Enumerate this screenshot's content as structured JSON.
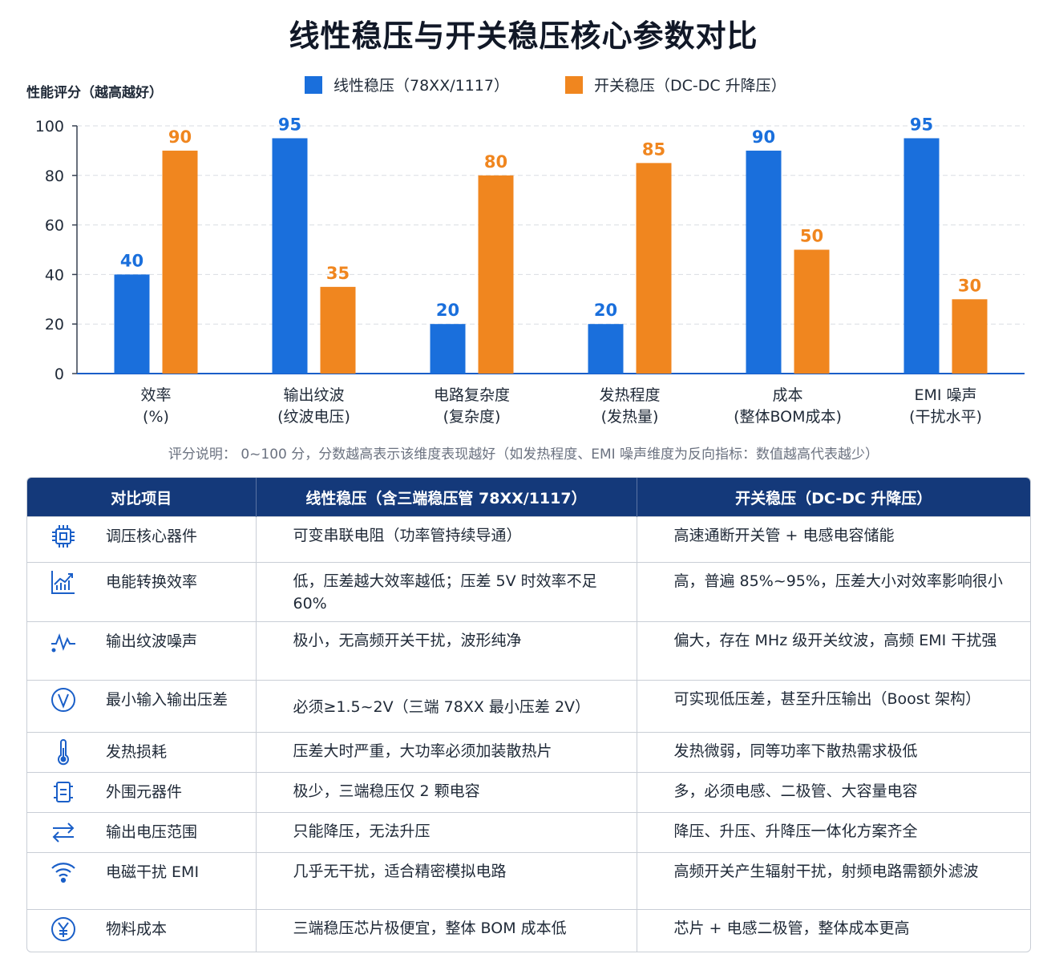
{
  "title": "线性稳压与开关稳压核心参数对比",
  "colors": {
    "linear": "#1a6fdc",
    "switching": "#f0861f",
    "header_bg": "#14397a"
  },
  "chart_data": {
    "type": "bar",
    "ylabel": "性能评分（越高越好）",
    "ylim": [
      0,
      100
    ],
    "yticks": [
      0,
      20,
      40,
      60,
      80,
      100
    ],
    "grid": true,
    "legend_position": "top",
    "categories": [
      [
        "效率",
        "(%)"
      ],
      [
        "输出纹波",
        "(纹波电压)"
      ],
      [
        "电路复杂度",
        "(复杂度)"
      ],
      [
        "发热程度",
        "(发热量)"
      ],
      [
        "成本",
        "(整体BOM成本)"
      ],
      [
        "EMI 噪声",
        "(干扰水平)"
      ]
    ],
    "series": [
      {
        "name": "线性稳压（78XX/1117）",
        "color": "#1a6fdc",
        "values": [
          40,
          95,
          20,
          20,
          90,
          95
        ]
      },
      {
        "name": "开关稳压（DC-DC 升降压）",
        "color": "#f0861f",
        "values": [
          90,
          35,
          80,
          85,
          50,
          30
        ]
      }
    ]
  },
  "note": "评分说明： 0~100 分，分数越高表示该维度表现越好（如发热程度、EMI 噪声维度为反向指标：数值越高代表越少）",
  "table": {
    "headers": [
      "对比项目",
      "线性稳压（含三端稳压管 78XX/1117）",
      "开关稳压（DC-DC 升降压）"
    ],
    "rows": [
      {
        "icon": "chip-icon",
        "item": "调压核心器件",
        "linear": "可变串联电阻（功率管持续导通）",
        "switching": "高速通断开关管 + 电感电容储能"
      },
      {
        "icon": "efficiency-chart-icon",
        "item": "电能转换效率",
        "linear": "低，压差越大效率越低；压差 5V 时效率不足 60%",
        "switching": "高，普遍 85%~95%，压差大小对效率影响很小"
      },
      {
        "icon": "waveform-icon",
        "item": "输出纹波噪声",
        "linear": "极小，无高频开关干扰，波形纯净",
        "switching": "偏大，存在 MHz 级开关纹波，高频 EMI 干扰强"
      },
      {
        "icon": "voltage-icon",
        "item": "最小输入输出压差",
        "linear": "必须≥1.5~2V（三端 78XX 最小压差 2V）",
        "switching": "可实现低压差，甚至升压输出（Boost 架构）"
      },
      {
        "icon": "thermometer-icon",
        "item": "发热损耗",
        "linear": "压差大时严重，大功率必须加装散热片",
        "switching": "发热微弱，同等功率下散热需求极低"
      },
      {
        "icon": "component-icon",
        "item": "外围元器件",
        "linear": "极少，三端稳压仅 2 颗电容",
        "switching": "多，必须电感、二极管、大容量电容"
      },
      {
        "icon": "arrows-icon",
        "item": "输出电压范围",
        "linear": "只能降压，无法升压",
        "switching": "降压、升压、升降压一体化方案齐全"
      },
      {
        "icon": "wifi-signal-icon",
        "item": "电磁干扰 EMI",
        "linear": "几乎无干扰，适合精密模拟电路",
        "switching": "高频开关产生辐射干扰，射频电路需额外滤波"
      },
      {
        "icon": "yen-icon",
        "item": "物料成本",
        "linear": "三端稳压芯片极便宜，整体 BOM 成本低",
        "switching": "芯片 + 电感二极管，整体成本更高"
      }
    ]
  }
}
